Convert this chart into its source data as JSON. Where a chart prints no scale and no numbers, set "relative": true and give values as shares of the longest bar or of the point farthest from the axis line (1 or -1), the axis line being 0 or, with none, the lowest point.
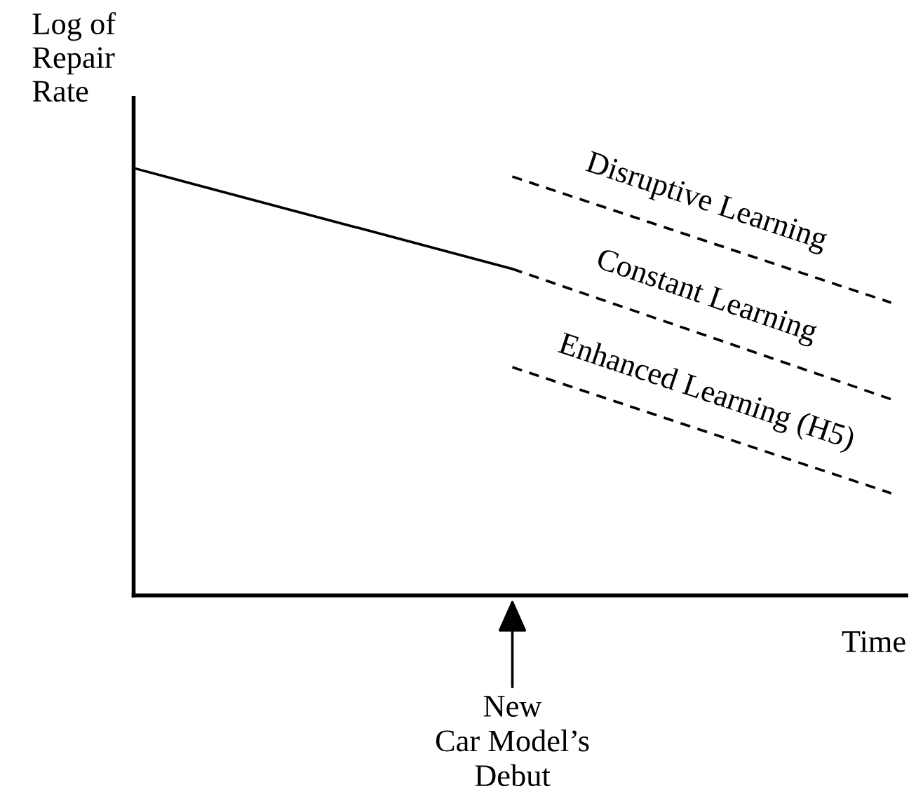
{
  "chart_data": {
    "type": "line",
    "relative": true,
    "categories": [
      null,
      null,
      null
    ],
    "ylabel": "Log of\nRepair\nRate",
    "xlabel": "Time",
    "annotations": [
      "New\nCar Model’s\nDebut"
    ],
    "legend": false,
    "marker": "none",
    "series": [
      {
        "color": "#000000",
        "line_style": "solid",
        "values": [
          1,
          0.764,
          null
        ]
      },
      {
        "name": "Disruptive Learning",
        "color": "#000000",
        "line_style": "dashed",
        "values": [
          null,
          0.98,
          0.685
        ]
      },
      {
        "name": "Constant Learning",
        "color": "#000000",
        "line_style": "dashed",
        "values": [
          null,
          0.764,
          0.459
        ]
      },
      {
        "name": "Enhanced Learning (H5)",
        "color": "#000000",
        "line_style": "dashed",
        "values": [
          null,
          0.534,
          0.239
        ]
      }
    ]
  }
}
